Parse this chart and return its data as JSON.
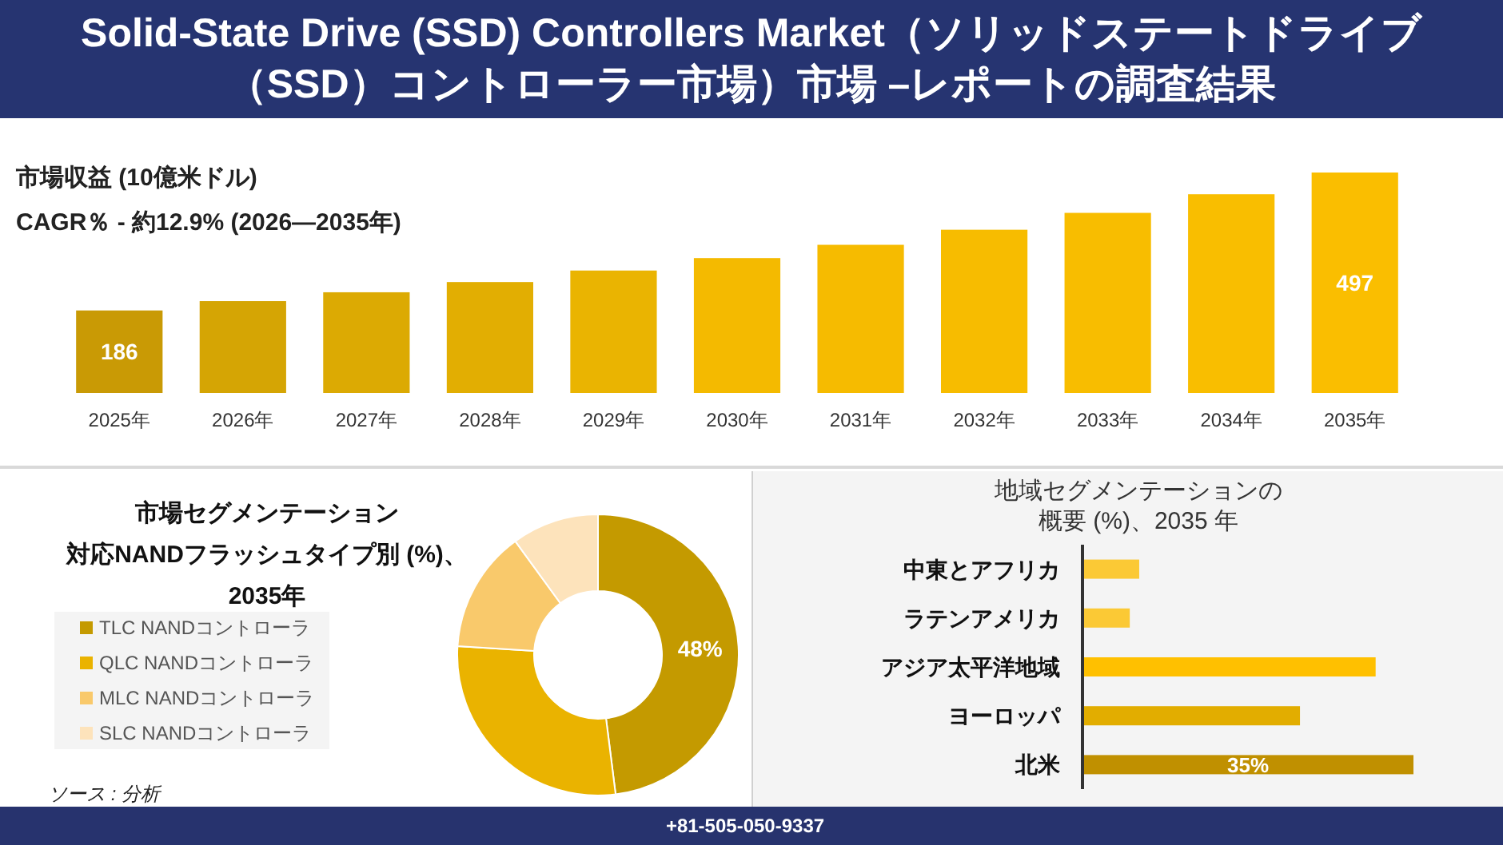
{
  "chart_data": [
    {
      "type": "other",
      "title": "Solid-State Drive (SSD) Controllers Market（ソリッドステートドライブ（SSD）コントローラー市場）市場 –レポートの調査結果"
    },
    {
      "type": "bar",
      "subtitle": "市場収益 (10億米ドル)",
      "annotations": [
        "CAGR％ - 約12.9% (2026—2035年)"
      ],
      "categories": [
        "2025年",
        "2026年",
        "2027年",
        "2028年",
        "2029年",
        "2030年",
        "2031年",
        "2032年",
        "2033年",
        "2034年",
        "2035年"
      ],
      "values": [
        186,
        207,
        227,
        250,
        276,
        304,
        334,
        368,
        406,
        448,
        497
      ],
      "colors": [
        "#c99a05",
        "#d5a504",
        "#dcaa03",
        "#e2ae02",
        "#eab401",
        "#f4ba00",
        "#f6bb00",
        "#f7bc00",
        "#f8bd00",
        "#f9be00",
        "#fabe00"
      ],
      "value_labels": [
        "186",
        null,
        null,
        null,
        null,
        null,
        null,
        null,
        null,
        null,
        "497"
      ]
    },
    {
      "type": "donut",
      "title": "市場セグメンテーション",
      "subtitle": "対応NANDフラッシュタイプ別 (%)、2035年",
      "categories": [
        "TLC NANDコントローラ",
        "QLC NANDコントローラ",
        "MLC NANDコントローラ",
        "SLC NANDコントローラ"
      ],
      "values": [
        48,
        28,
        14,
        10
      ],
      "colors": [
        "#c49a00",
        "#eab300",
        "#f9c96b",
        "#fde3bb"
      ],
      "value_labels": [
        "48%",
        null,
        null,
        null
      ],
      "legend": "left",
      "annotations": [
        "ソース : 分析"
      ]
    },
    {
      "type": "bar",
      "orientation": "horizontal",
      "title": "地域セグメンテーションの概要 (%)、2035 年",
      "categories": [
        "中東とアフリカ",
        "ラテンアメリカ",
        "アジア太平洋地域",
        "ヨーロッパ",
        "北米"
      ],
      "values": [
        6,
        5,
        31,
        23,
        35
      ],
      "colors": [
        "#fbc935",
        "#fbc935",
        "#ffc000",
        "#e2ad00",
        "#c09000"
      ],
      "value_labels": [
        null,
        null,
        null,
        null,
        "35%"
      ],
      "annotations": [
        "+81-505-050-9337"
      ]
    }
  ]
}
